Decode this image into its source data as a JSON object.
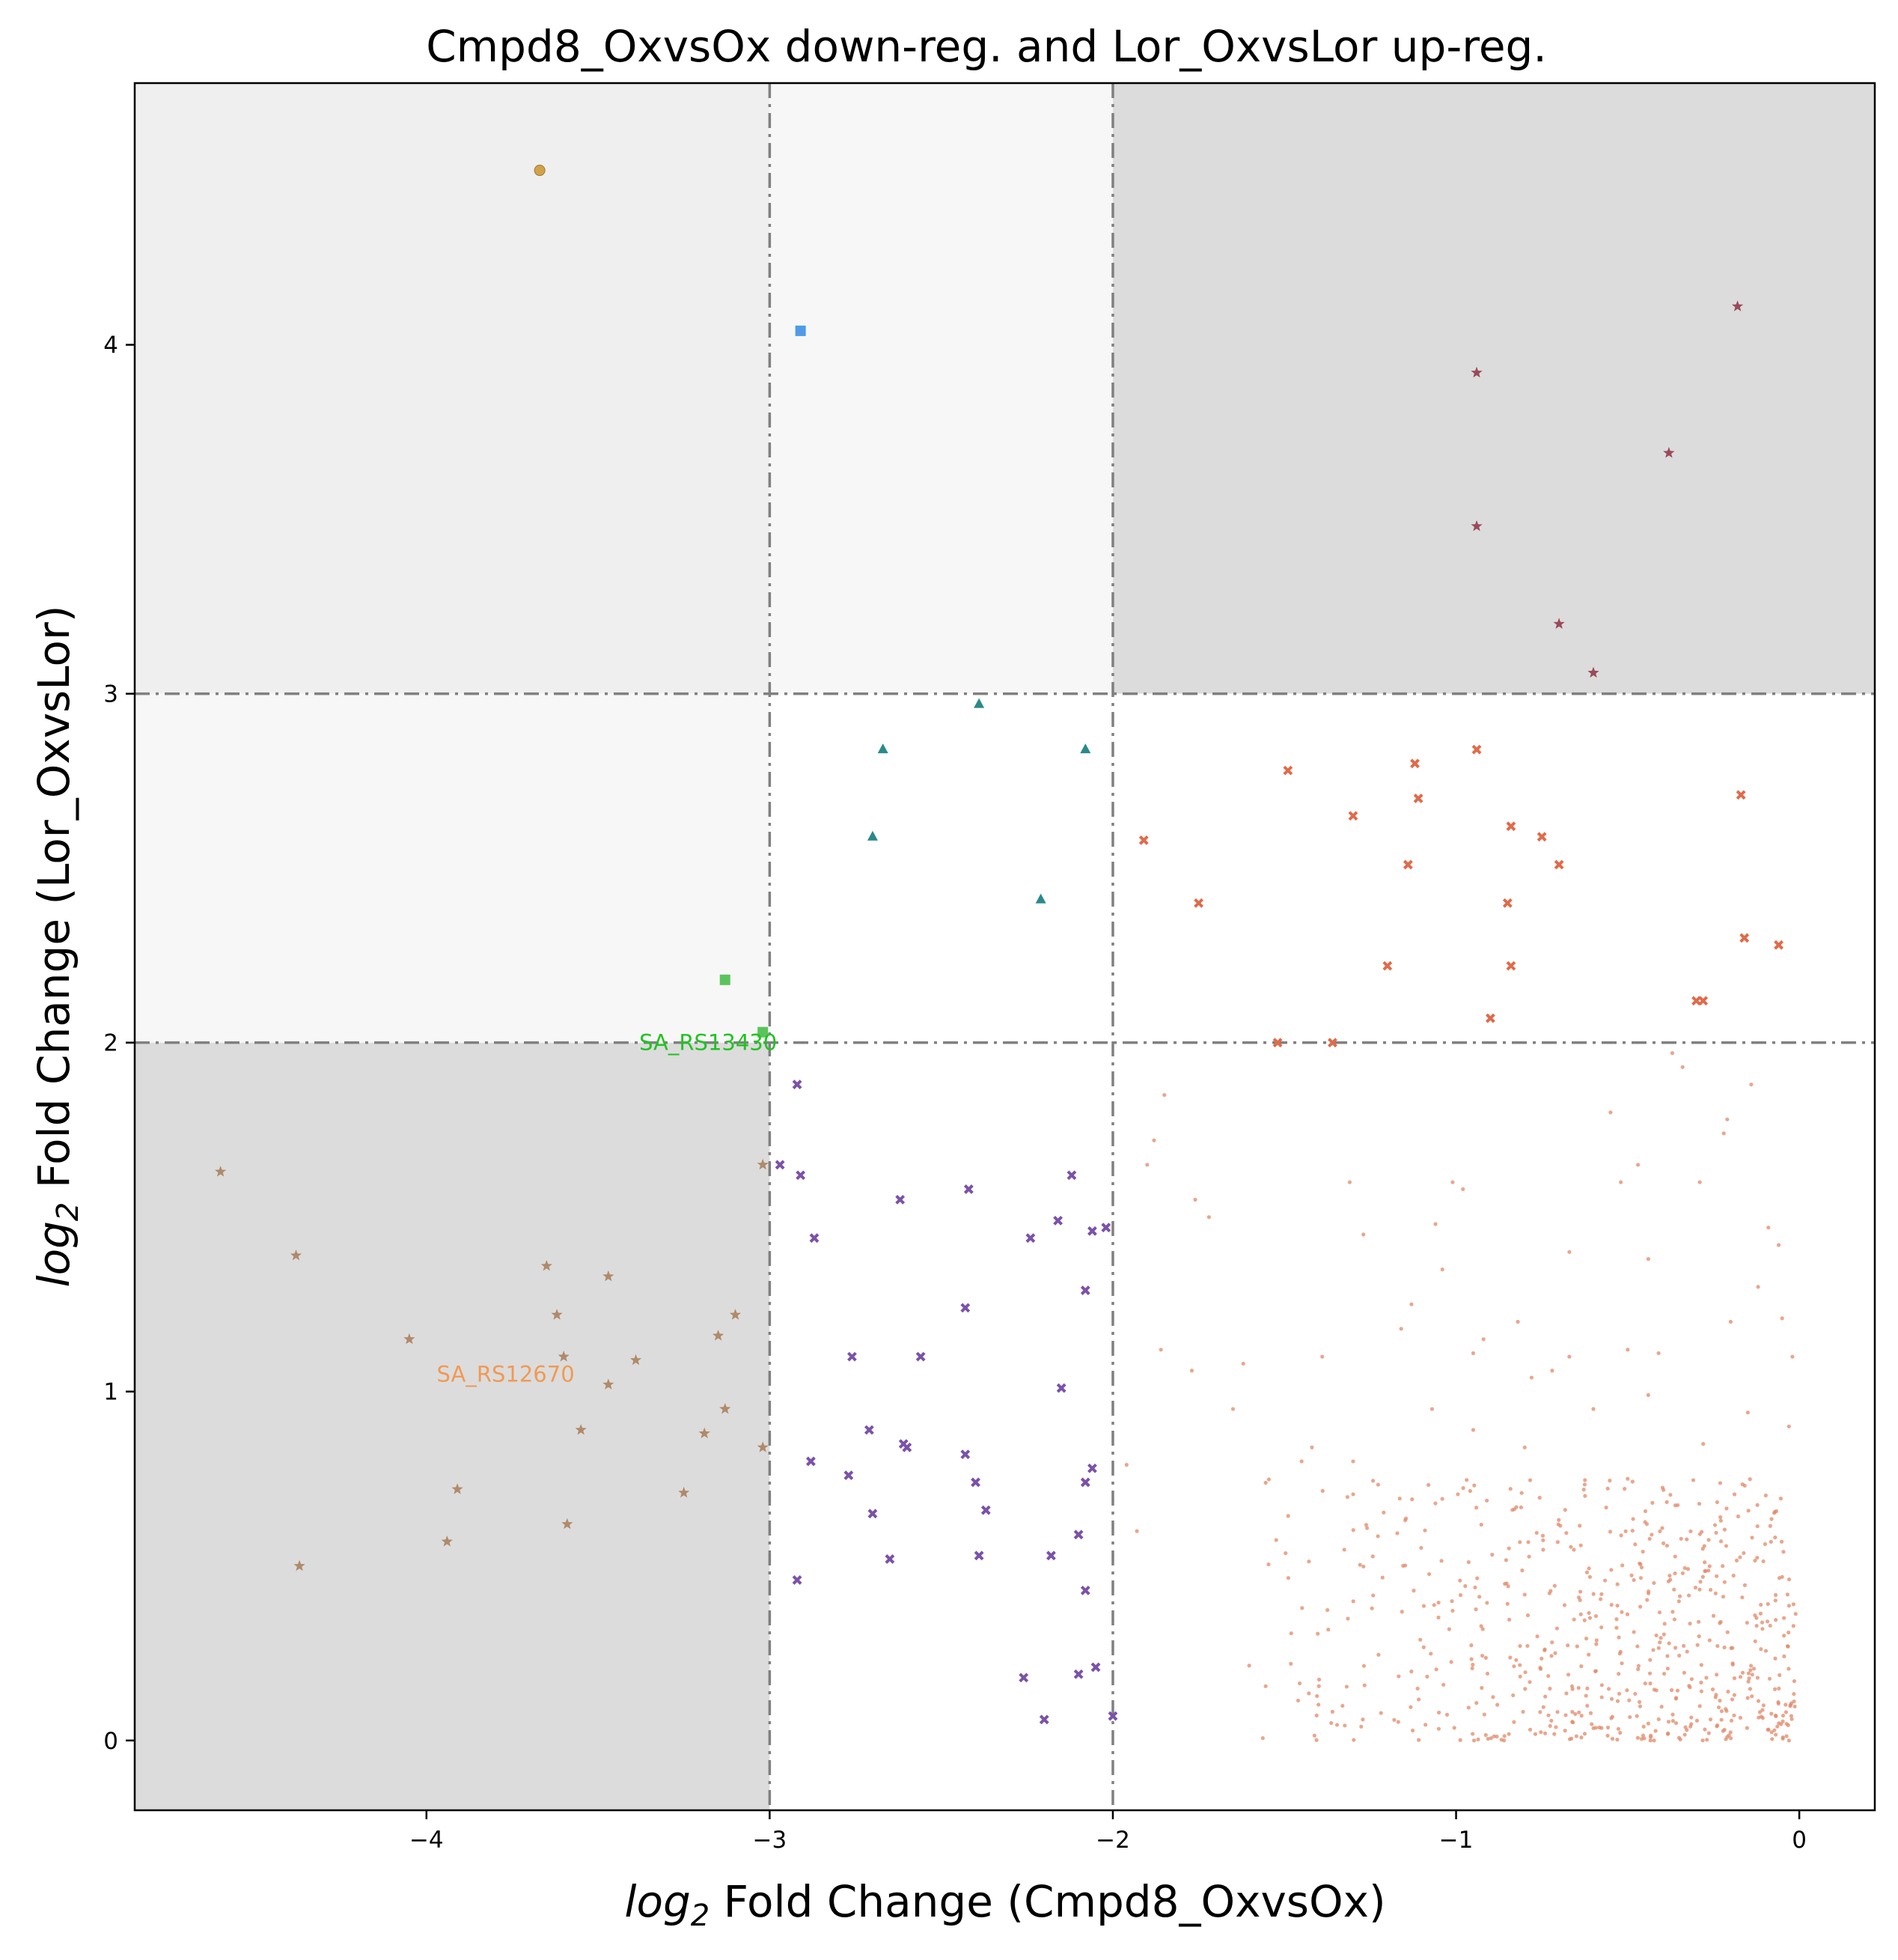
{
  "chart_data": {
    "type": "scatter",
    "title": "Cmpd8_OxvsOx down-reg. and Lor_OxvsLor up-reg.",
    "xlabel": {
      "pre": "log",
      "sub": "2",
      "post": " Fold Change (Cmpd8_OxvsOx)"
    },
    "ylabel": {
      "pre": "log",
      "sub": "2",
      "post": " Fold Change (Lor_OxvsLor)"
    },
    "xlim": [
      -4.85,
      0.22
    ],
    "ylim": [
      -0.2,
      4.75
    ],
    "xticks": [
      {
        "value": -4,
        "label": "−4"
      },
      {
        "value": -3,
        "label": "−3"
      },
      {
        "value": -2,
        "label": "−2"
      },
      {
        "value": -1,
        "label": "−1"
      },
      {
        "value": 0,
        "label": "0"
      }
    ],
    "yticks": [
      {
        "value": 0,
        "label": "0"
      },
      {
        "value": 1,
        "label": "1"
      },
      {
        "value": 2,
        "label": "2"
      },
      {
        "value": 3,
        "label": "3"
      },
      {
        "value": 4,
        "label": "4"
      }
    ],
    "grid": false,
    "threshold_lines": {
      "x": [
        -3,
        -2
      ],
      "y": [
        2,
        3
      ]
    },
    "regions": [
      {
        "x": [
          -4.85,
          -3
        ],
        "y": [
          -0.2,
          2
        ],
        "color": "#dcdcdc"
      },
      {
        "x": [
          -2,
          0.22
        ],
        "y": [
          3,
          4.75
        ],
        "color": "#dcdcdc"
      },
      {
        "x": [
          -4.85,
          -3
        ],
        "y": [
          3,
          4.75
        ],
        "color": "#efefef"
      },
      {
        "x": [
          -4.85,
          -3
        ],
        "y": [
          2,
          3
        ],
        "color": "#f7f7f7"
      },
      {
        "x": [
          -3,
          -2
        ],
        "y": [
          3,
          4.75
        ],
        "color": "#f7f7f7"
      }
    ],
    "series": [
      {
        "marker": "dot",
        "color": "#e0896a",
        "points": [
          [
            -1.85,
            1.85
          ],
          [
            -1.76,
            1.55
          ],
          [
            -1.72,
            1.5
          ],
          [
            -1.31,
            1.6
          ],
          [
            -1.27,
            1.45
          ],
          [
            -1.01,
            1.6
          ],
          [
            -0.98,
            1.58
          ],
          [
            -0.67,
            1.4
          ],
          [
            -0.55,
            1.8
          ],
          [
            -0.52,
            1.6
          ],
          [
            -0.47,
            1.65
          ],
          [
            -0.29,
            1.6
          ],
          [
            -0.09,
            1.47
          ],
          [
            -0.06,
            1.42
          ],
          [
            -0.21,
            1.78
          ],
          [
            -0.22,
            1.74
          ],
          [
            -0.34,
            1.93
          ],
          [
            -0.37,
            1.97
          ],
          [
            -0.14,
            1.88
          ],
          [
            -0.44,
            1.38
          ],
          [
            -0.82,
            1.2
          ],
          [
            -0.92,
            1.15
          ],
          [
            -1.9,
            1.65
          ],
          [
            -1.88,
            1.72
          ],
          [
            -1.86,
            1.12
          ],
          [
            -1.77,
            1.06
          ],
          [
            -1.62,
            1.08
          ],
          [
            -1.16,
            1.18
          ],
          [
            -1.06,
            1.48
          ],
          [
            -1.04,
            1.35
          ],
          [
            -1.13,
            1.25
          ],
          [
            -1.39,
            1.1
          ],
          [
            -1.3,
            0.8
          ],
          [
            -0.95,
            1.11
          ],
          [
            -0.78,
            1.04
          ],
          [
            -0.67,
            1.1
          ],
          [
            -0.5,
            1.12
          ],
          [
            -0.41,
            1.11
          ],
          [
            -0.2,
            1.2
          ],
          [
            -0.12,
            1.3
          ],
          [
            -0.05,
            1.21
          ],
          [
            -0.02,
            1.1
          ],
          [
            -1.93,
            0.6
          ],
          [
            -1.96,
            0.79
          ],
          [
            -1.45,
            0.8
          ],
          [
            -1.42,
            0.84
          ],
          [
            -1.65,
            0.95
          ],
          [
            -1.07,
            0.95
          ],
          [
            -0.95,
            0.89
          ],
          [
            -0.8,
            0.84
          ],
          [
            -0.72,
            1.06
          ],
          [
            -0.6,
            0.95
          ],
          [
            -0.5,
            0.75
          ],
          [
            -0.44,
            0.99
          ],
          [
            -0.28,
            0.85
          ],
          [
            -0.15,
            0.94
          ],
          [
            -0.03,
            0.9
          ]
        ],
        "cloud": {
          "count": 640,
          "x": [
            -1.75,
            -0.01
          ],
          "y": [
            0.0,
            0.75
          ],
          "seed": 7
        }
      },
      {
        "marker": "x",
        "color": "#e06b4a",
        "points": [
          [
            -1.91,
            2.58
          ],
          [
            -1.75,
            2.4
          ],
          [
            -1.49,
            2.78
          ],
          [
            -1.3,
            2.65
          ],
          [
            -1.14,
            2.51
          ],
          [
            -1.12,
            2.8
          ],
          [
            -1.11,
            2.7
          ],
          [
            -0.94,
            2.84
          ],
          [
            -0.84,
            2.62
          ],
          [
            -0.75,
            2.59
          ],
          [
            -0.7,
            2.51
          ],
          [
            -0.85,
            2.4
          ],
          [
            -0.84,
            2.22
          ],
          [
            -1.2,
            2.22
          ],
          [
            -0.9,
            2.07
          ],
          [
            -1.36,
            2.0
          ],
          [
            -1.52,
            2.0
          ],
          [
            -0.3,
            2.12
          ],
          [
            -0.28,
            2.12
          ],
          [
            -0.17,
            2.71
          ],
          [
            -0.16,
            2.3
          ],
          [
            -0.06,
            2.28
          ]
        ]
      },
      {
        "marker": "x",
        "color": "#7b52a8",
        "points": [
          [
            -2.92,
            1.88
          ],
          [
            -2.97,
            1.65
          ],
          [
            -2.91,
            1.62
          ],
          [
            -2.87,
            1.44
          ],
          [
            -2.62,
            1.55
          ],
          [
            -2.42,
            1.58
          ],
          [
            -2.24,
            1.44
          ],
          [
            -2.16,
            1.49
          ],
          [
            -2.12,
            1.62
          ],
          [
            -2.06,
            1.46
          ],
          [
            -2.02,
            1.47
          ],
          [
            -2.08,
            1.29
          ],
          [
            -2.43,
            1.24
          ],
          [
            -2.56,
            1.1
          ],
          [
            -2.76,
            1.1
          ],
          [
            -2.15,
            1.01
          ],
          [
            -2.71,
            0.89
          ],
          [
            -2.61,
            0.85
          ],
          [
            -2.6,
            0.84
          ],
          [
            -2.43,
            0.82
          ],
          [
            -2.4,
            0.74
          ],
          [
            -2.88,
            0.8
          ],
          [
            -2.77,
            0.76
          ],
          [
            -2.06,
            0.78
          ],
          [
            -2.08,
            0.74
          ],
          [
            -2.7,
            0.65
          ],
          [
            -2.37,
            0.66
          ],
          [
            -2.1,
            0.59
          ],
          [
            -2.65,
            0.52
          ],
          [
            -2.39,
            0.53
          ],
          [
            -2.18,
            0.53
          ],
          [
            -2.08,
            0.43
          ],
          [
            -2.92,
            0.46
          ],
          [
            -2.26,
            0.18
          ],
          [
            -2.2,
            0.06
          ],
          [
            -2.1,
            0.19
          ],
          [
            -2.05,
            0.21
          ],
          [
            -2.0,
            0.07
          ]
        ]
      },
      {
        "marker": "star",
        "color": "#b08a6a",
        "points": [
          [
            -4.6,
            1.63
          ],
          [
            -4.38,
            1.39
          ],
          [
            -4.05,
            1.15
          ],
          [
            -3.65,
            1.36
          ],
          [
            -3.62,
            1.22
          ],
          [
            -3.6,
            1.1
          ],
          [
            -3.47,
            1.33
          ],
          [
            -3.39,
            1.09
          ],
          [
            -3.47,
            1.02
          ],
          [
            -3.55,
            0.89
          ],
          [
            -3.19,
            0.88
          ],
          [
            -3.13,
            0.95
          ],
          [
            -3.15,
            1.16
          ],
          [
            -3.1,
            1.22
          ],
          [
            -3.02,
            1.65
          ],
          [
            -3.02,
            0.84
          ],
          [
            -3.91,
            0.72
          ],
          [
            -3.25,
            0.71
          ],
          [
            -3.94,
            0.57
          ],
          [
            -3.59,
            0.62
          ],
          [
            -4.37,
            0.5
          ]
        ]
      },
      {
        "marker": "star",
        "color": "#9a4a5a",
        "points": [
          [
            -0.18,
            4.11
          ],
          [
            -0.94,
            3.92
          ],
          [
            -0.38,
            3.69
          ],
          [
            -0.94,
            3.48
          ],
          [
            -0.7,
            3.2
          ],
          [
            -0.6,
            3.06
          ]
        ]
      },
      {
        "marker": "triangle",
        "color": "#2a8a8a",
        "points": [
          [
            -2.39,
            2.97
          ],
          [
            -2.67,
            2.84
          ],
          [
            -2.08,
            2.84
          ],
          [
            -2.7,
            2.59
          ],
          [
            -2.21,
            2.41
          ]
        ]
      },
      {
        "marker": "square",
        "color": "#4f9be8",
        "points": [
          [
            -2.91,
            4.04
          ]
        ]
      },
      {
        "marker": "square",
        "color": "#5ac45a",
        "points": [
          [
            -3.13,
            2.18
          ],
          [
            -3.02,
            2.03
          ]
        ]
      },
      {
        "marker": "circle",
        "color": "#d2a24a",
        "points": [
          [
            -3.67,
            4.5
          ]
        ]
      }
    ],
    "annotations": [
      {
        "text": "SA_RS13430",
        "x": -3.38,
        "y": 2.0,
        "color": "#22c322"
      },
      {
        "text": "SA_RS12670",
        "x": -3.97,
        "y": 1.05,
        "color": "#f09a55"
      }
    ]
  }
}
